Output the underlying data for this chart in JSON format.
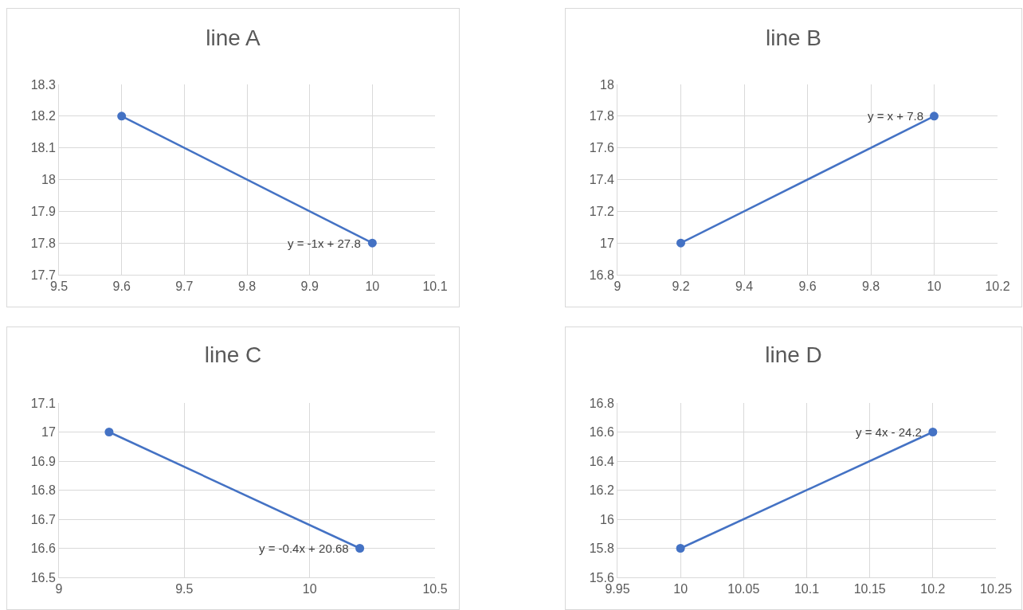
{
  "chart_data": [
    {
      "type": "line",
      "title": "line A",
      "x": [
        9.6,
        10
      ],
      "values": [
        18.2,
        17.8
      ],
      "color": "#4472c4",
      "marker": "circle",
      "xlim": [
        9.5,
        10.1
      ],
      "xticks": [
        9.5,
        9.6,
        9.7,
        9.8,
        9.9,
        10,
        10.1
      ],
      "ylim": [
        17.7,
        18.3
      ],
      "yticks": [
        17.7,
        17.8,
        17.9,
        18,
        18.1,
        18.2,
        18.3
      ],
      "grid": true,
      "annotations": [
        "y = -1x + 27.8"
      ]
    },
    {
      "type": "line",
      "title": "line B",
      "x": [
        9.2,
        10
      ],
      "values": [
        17,
        17.8
      ],
      "color": "#4472c4",
      "marker": "circle",
      "xlim": [
        9,
        10.2
      ],
      "xticks": [
        9,
        9.2,
        9.4,
        9.6,
        9.8,
        10,
        10.2
      ],
      "ylim": [
        16.8,
        18
      ],
      "yticks": [
        16.8,
        17,
        17.2,
        17.4,
        17.6,
        17.8,
        18
      ],
      "grid": true,
      "annotations": [
        "y = x + 7.8"
      ]
    },
    {
      "type": "line",
      "title": "line C",
      "x": [
        9.2,
        10.2
      ],
      "values": [
        17,
        16.6
      ],
      "color": "#4472c4",
      "marker": "circle",
      "xlim": [
        9,
        10.5
      ],
      "xticks": [
        9,
        9.5,
        10,
        10.5
      ],
      "ylim": [
        16.5,
        17.1
      ],
      "yticks": [
        16.5,
        16.6,
        16.7,
        16.8,
        16.9,
        17,
        17.1
      ],
      "grid": true,
      "annotations": [
        "y = -0.4x + 20.68"
      ]
    },
    {
      "type": "line",
      "title": "line D",
      "x": [
        10,
        10.2
      ],
      "values": [
        15.8,
        16.6
      ],
      "color": "#4472c4",
      "marker": "circle",
      "xlim": [
        9.95,
        10.25
      ],
      "xticks": [
        9.95,
        10,
        10.05,
        10.1,
        10.15,
        10.2,
        10.25
      ],
      "ylim": [
        15.6,
        16.8
      ],
      "yticks": [
        15.6,
        15.8,
        16,
        16.2,
        16.4,
        16.6,
        16.8
      ],
      "grid": true,
      "annotations": [
        "y = 4x - 24.2"
      ]
    }
  ]
}
